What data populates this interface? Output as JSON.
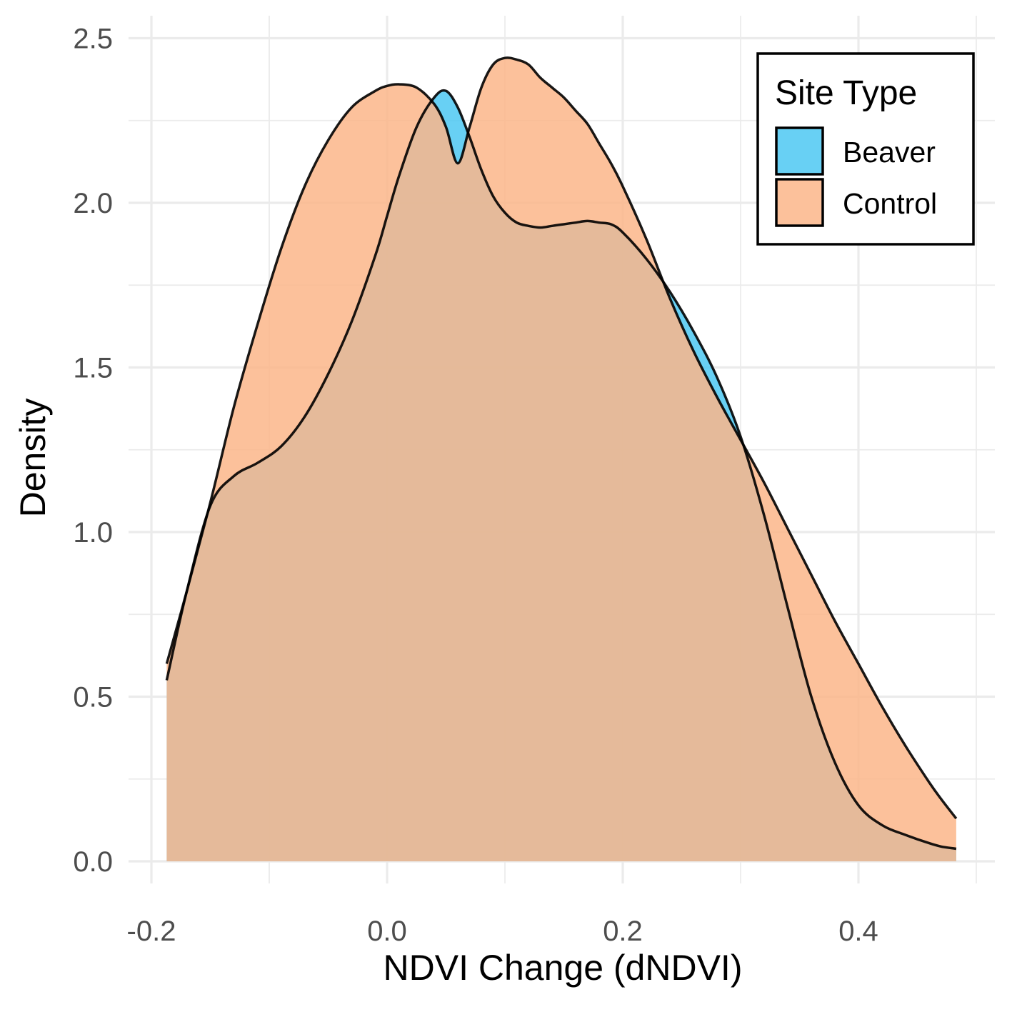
{
  "chart_data": {
    "type": "area",
    "subtype": "density",
    "title": "",
    "xlabel": "NDVI Change (dNDVI)",
    "ylabel": "Density",
    "xlim": [
      -0.2,
      0.5
    ],
    "ylim": [
      0,
      2.5
    ],
    "x_ticks": [
      -0.2,
      0.0,
      0.2,
      0.4
    ],
    "x_tick_labels": [
      "-0.2",
      "0.0",
      "0.2",
      "0.4"
    ],
    "y_ticks": [
      0.0,
      0.5,
      1.0,
      1.5,
      2.0,
      2.5
    ],
    "y_tick_labels": [
      "0.0",
      "0.5",
      "1.0",
      "1.5",
      "2.0",
      "2.5"
    ],
    "grid": true,
    "legend": {
      "title": "Site Type",
      "position": "top-right"
    },
    "series": [
      {
        "name": "Beaver",
        "color": "#4dc8f2",
        "outline": "#000000",
        "x": [
          -0.187,
          -0.17,
          -0.15,
          -0.13,
          -0.11,
          -0.09,
          -0.07,
          -0.05,
          -0.03,
          -0.01,
          0.0,
          0.01,
          0.025,
          0.04,
          0.05,
          0.06,
          0.07,
          0.08,
          0.09,
          0.1,
          0.11,
          0.12,
          0.13,
          0.14,
          0.15,
          0.16,
          0.17,
          0.18,
          0.19,
          0.2,
          0.22,
          0.24,
          0.26,
          0.28,
          0.3,
          0.32,
          0.34,
          0.36,
          0.38,
          0.4,
          0.42,
          0.44,
          0.46,
          0.47,
          0.483
        ],
        "y": [
          0.55,
          0.82,
          1.08,
          1.17,
          1.21,
          1.26,
          1.35,
          1.48,
          1.64,
          1.84,
          1.96,
          2.08,
          2.23,
          2.32,
          2.34,
          2.29,
          2.2,
          2.1,
          2.02,
          1.97,
          1.94,
          1.93,
          1.925,
          1.93,
          1.935,
          1.94,
          1.945,
          1.94,
          1.935,
          1.91,
          1.83,
          1.73,
          1.61,
          1.47,
          1.29,
          1.05,
          0.77,
          0.5,
          0.3,
          0.17,
          0.11,
          0.08,
          0.055,
          0.045,
          0.038
        ]
      },
      {
        "name": "Control",
        "color": "#fbb68a",
        "outline": "#000000",
        "x": [
          -0.187,
          -0.17,
          -0.15,
          -0.13,
          -0.11,
          -0.09,
          -0.07,
          -0.05,
          -0.03,
          -0.01,
          0.0,
          0.01,
          0.025,
          0.04,
          0.05,
          0.06,
          0.07,
          0.08,
          0.09,
          0.1,
          0.11,
          0.12,
          0.13,
          0.14,
          0.15,
          0.16,
          0.17,
          0.18,
          0.19,
          0.2,
          0.22,
          0.24,
          0.26,
          0.28,
          0.3,
          0.32,
          0.34,
          0.36,
          0.38,
          0.4,
          0.42,
          0.44,
          0.46,
          0.47,
          0.483
        ],
        "y": [
          0.6,
          0.82,
          1.09,
          1.38,
          1.63,
          1.86,
          2.05,
          2.19,
          2.29,
          2.34,
          2.355,
          2.36,
          2.35,
          2.3,
          2.23,
          2.12,
          2.23,
          2.35,
          2.42,
          2.44,
          2.435,
          2.42,
          2.38,
          2.35,
          2.32,
          2.28,
          2.24,
          2.18,
          2.12,
          2.05,
          1.89,
          1.71,
          1.55,
          1.41,
          1.28,
          1.15,
          1.01,
          0.87,
          0.73,
          0.6,
          0.47,
          0.35,
          0.24,
          0.19,
          0.13
        ]
      }
    ]
  }
}
